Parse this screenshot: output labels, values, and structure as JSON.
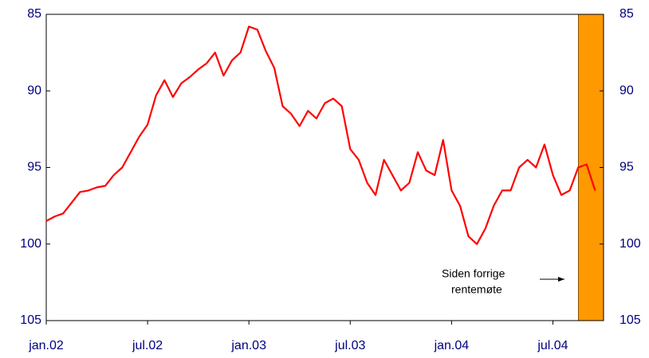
{
  "chart_data": {
    "type": "line",
    "categories": [
      "jan.02",
      null,
      null,
      null,
      null,
      null,
      null,
      null,
      null,
      null,
      null,
      null,
      "jul.02",
      null,
      null,
      null,
      null,
      null,
      null,
      null,
      null,
      null,
      null,
      null,
      "jan.03",
      null,
      null,
      null,
      null,
      null,
      null,
      null,
      null,
      null,
      null,
      null,
      "jul.03",
      null,
      null,
      null,
      null,
      null,
      null,
      null,
      null,
      null,
      null,
      null,
      "jan.04",
      null,
      null,
      null,
      null,
      null,
      null,
      null,
      null,
      null,
      null,
      null,
      "jul.04",
      null,
      null,
      null,
      null,
      null,
      null
    ],
    "series": [
      {
        "color": "#ff0000",
        "values": [
          98.5,
          98.2,
          98.0,
          97.3,
          96.6,
          96.5,
          96.3,
          96.2,
          95.5,
          95.0,
          94.0,
          93.0,
          92.2,
          90.3,
          89.3,
          90.4,
          89.5,
          89.1,
          88.6,
          88.2,
          87.5,
          89.0,
          88.0,
          87.5,
          85.8,
          86.0,
          87.4,
          88.5,
          91.0,
          91.5,
          92.3,
          91.3,
          91.8,
          90.8,
          90.5,
          91.0,
          93.8,
          94.5,
          96.0,
          96.8,
          94.5,
          95.5,
          96.5,
          96.0,
          94.0,
          95.2,
          95.5,
          93.2,
          96.5,
          97.5,
          99.5,
          100.0,
          99.0,
          97.5,
          96.5,
          96.5,
          95.0,
          94.5,
          95.0,
          93.5,
          95.5,
          96.8,
          96.5,
          95.0,
          94.8,
          96.5,
          null
        ]
      }
    ],
    "ylim": [
      85,
      105
    ],
    "yticks": [
      85,
      90,
      95,
      100,
      105
    ],
    "y2lim": [
      85,
      105
    ],
    "y2ticks": [
      85,
      90,
      95,
      100,
      105
    ],
    "y_inverted": true,
    "highlight": {
      "from": 63,
      "to": 66,
      "color": "#ff9900"
    },
    "annotation": [
      "Siden forrige",
      "rentemøte"
    ]
  }
}
